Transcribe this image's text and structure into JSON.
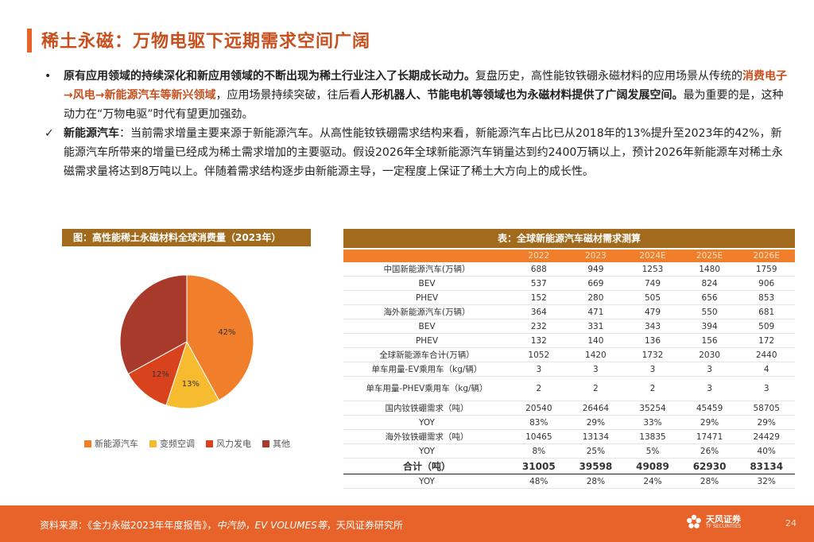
{
  "title": "稀土永磁：万物电驱下远期需求空间广阔",
  "bullets": [
    {
      "mark": "•",
      "bold_text": "原有应用领域的持续深化和新应用领域的不断出现为稀土行业注入了长期成长动力。",
      "text_a": "复盘历史，高性能钕铁硼永磁材料的应用场景从传统的",
      "highlight": "消费电子→风电→新能源汽车等新兴领域",
      "text_b": "，应用场景持续突破，往后看",
      "bold_text_2": "人形机器人、节能电机等领域也为永磁材料提供了广阔发展空间。",
      "text_c": "最为重要的是，这种动力在“万物电驱”时代有望更加强劲。"
    },
    {
      "mark": "✓",
      "bold_text": "新能源汽车",
      "text_a": "：当前需求增量主要来源于新能源汽车。从高性能钕铁硼需求结构来看，新能源汽车占比已从2018年的13%提升至2023年的42%，新能源汽车所带来的增量已经成为稀土需求增加的主要驱动。假设2026年全球新能源汽车销量达到约2400万辆以上，预计2026年新能源车对稀土永磁需求量将达到8万吨以上。伴随着需求结构逐步由新能源主导，一定程度上保证了稀土大方向上的成长性。"
    }
  ],
  "chart_header": "图：高性能稀土永磁材料全球消费量（2023年）",
  "chart_data": {
    "type": "pie",
    "title": "图：高性能稀土永磁材料全球消费量（2023年）",
    "slices": [
      {
        "name": "新能源汽车",
        "value": 42,
        "label": "42%",
        "color": "#f07e2a"
      },
      {
        "name": "变频空调",
        "value": 13,
        "label": "13%",
        "color": "#f7bb30"
      },
      {
        "name": "风力发电",
        "value": 12,
        "label": "12%",
        "color": "#d8431e"
      },
      {
        "name": "其他",
        "value": 33,
        "label": "",
        "color": "#a83a2c"
      }
    ],
    "legend_position": "bottom"
  },
  "table": {
    "title": "表：全球新能源汽车磁材需求测算",
    "years": [
      "2022",
      "2023",
      "2024E",
      "2025E",
      "2026E"
    ],
    "rows": [
      {
        "label": "中国新能源汽车(万辆）",
        "values": [
          "688",
          "949",
          "1253",
          "1480",
          "1759"
        ]
      },
      {
        "label": "BEV",
        "values": [
          "537",
          "669",
          "749",
          "824",
          "906"
        ]
      },
      {
        "label": "PHEV",
        "values": [
          "152",
          "280",
          "505",
          "656",
          "853"
        ]
      },
      {
        "label": "海外新能源汽车(万辆）",
        "values": [
          "364",
          "471",
          "479",
          "550",
          "681"
        ]
      },
      {
        "label": "BEV",
        "values": [
          "232",
          "331",
          "343",
          "394",
          "509"
        ]
      },
      {
        "label": "PHEV",
        "values": [
          "132",
          "140",
          "136",
          "156",
          "172"
        ]
      },
      {
        "label": "全球新能源车合计(万辆）",
        "values": [
          "1052",
          "1420",
          "1732",
          "2030",
          "2440"
        ]
      },
      {
        "label": "单车用量-EV乘用车（kg/辆）",
        "values": [
          "3",
          "3",
          "3",
          "3",
          "4"
        ]
      },
      {
        "label": "单车用量-PHEV乘用车（kg/辆）",
        "values": [
          "2",
          "2",
          "2",
          "3",
          "3"
        ],
        "tall": true
      },
      {
        "label": "国内钕铁硼需求（吨）",
        "values": [
          "20540",
          "26464",
          "35254",
          "45459",
          "58705"
        ]
      },
      {
        "label": "YOY",
        "values": [
          "83%",
          "29%",
          "33%",
          "29%",
          "29%"
        ]
      },
      {
        "label": "海外钕铁硼需求（吨）",
        "values": [
          "10465",
          "13134",
          "13835",
          "17471",
          "24429"
        ]
      },
      {
        "label": "YOY",
        "values": [
          "8%",
          "25%",
          "5%",
          "26%",
          "40%"
        ]
      },
      {
        "label": "合计（吨）",
        "values": [
          "31005",
          "39598",
          "49089",
          "62930",
          "83134"
        ],
        "total": true
      },
      {
        "label": "YOY",
        "values": [
          "48%",
          "28%",
          "24%",
          "28%",
          "32%"
        ]
      }
    ]
  },
  "footer": {
    "source_a": "资料来源：《金力永磁2023年年度报告》，",
    "source_b": "中汽协，EV VOLUMES等",
    "source_c": "，天风证券研究所",
    "logo_text": "天风证券",
    "logo_sub": "TF SECURITIES",
    "page_number": "24"
  },
  "colors": {
    "accent": "#e8632a",
    "header_brown": "#a26a1d",
    "table_header": "#f07e2a"
  }
}
